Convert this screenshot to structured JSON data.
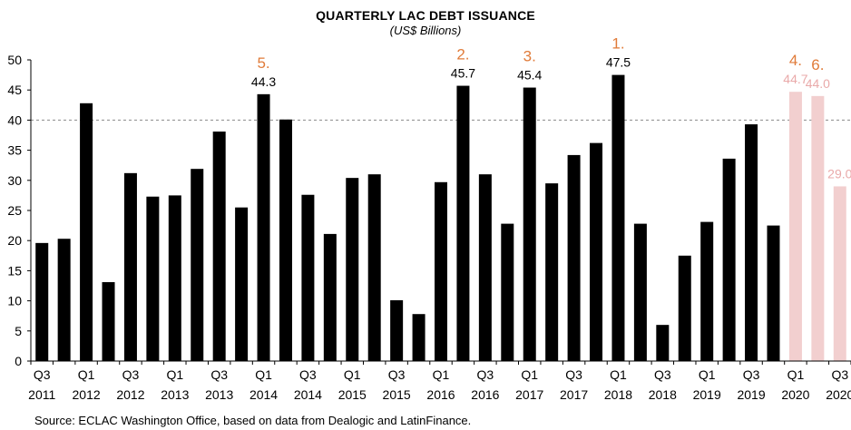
{
  "chart_data": {
    "type": "bar",
    "title": "QUARTERLY LAC DEBT ISSUANCE",
    "subtitle": "(US$ Billions)",
    "source": "Source: ECLAC Washington Office, based on data from Dealogic and LatinFinance.",
    "ylim": [
      0,
      50
    ],
    "yticks": [
      0,
      5,
      10,
      15,
      20,
      25,
      30,
      35,
      40,
      45,
      50
    ],
    "reference_line": 40,
    "grid": false,
    "categories": [
      "Q3 2011",
      "Q4 2011",
      "Q1 2012",
      "Q2 2012",
      "Q3 2012",
      "Q4 2012",
      "Q1 2013",
      "Q2 2013",
      "Q3 2013",
      "Q4 2013",
      "Q1 2014",
      "Q2 2014",
      "Q3 2014",
      "Q4 2014",
      "Q1 2015",
      "Q2 2015",
      "Q3 2015",
      "Q4 2015",
      "Q1 2016",
      "Q2 2016",
      "Q3 2016",
      "Q4 2016",
      "Q1 2017",
      "Q2 2017",
      "Q3 2017",
      "Q4 2017",
      "Q1 2018",
      "Q2 2018",
      "Q3 2018",
      "Q4 2018",
      "Q1 2019",
      "Q2 2019",
      "Q3 2019",
      "Q4 2019",
      "Q1 2020",
      "Q2 2020",
      "Q3 2020"
    ],
    "values": [
      19.6,
      20.3,
      42.8,
      13.1,
      31.2,
      27.3,
      27.5,
      31.9,
      38.1,
      25.5,
      44.3,
      40.1,
      27.6,
      21.1,
      30.4,
      31.0,
      10.1,
      7.8,
      29.7,
      45.7,
      31.0,
      22.8,
      45.4,
      29.5,
      34.2,
      36.2,
      47.5,
      22.8,
      6.0,
      17.5,
      23.1,
      33.6,
      39.3,
      22.5,
      44.7,
      44.0,
      29.0
    ],
    "highlight_indices": [
      34,
      35,
      36
    ],
    "bar_color": "#000000",
    "highlight_color": "#f2cfcf",
    "value_labels": [
      {
        "index": 10,
        "text": "44.3"
      },
      {
        "index": 19,
        "text": "45.7"
      },
      {
        "index": 22,
        "text": "45.4"
      },
      {
        "index": 26,
        "text": "47.5"
      },
      {
        "index": 34,
        "text": "44.7"
      },
      {
        "index": 35,
        "text": "44.0"
      },
      {
        "index": 36,
        "text": "29.0"
      }
    ],
    "rank_labels": [
      {
        "index": 10,
        "text": "5."
      },
      {
        "index": 19,
        "text": "2."
      },
      {
        "index": 22,
        "text": "3."
      },
      {
        "index": 26,
        "text": "1."
      },
      {
        "index": 34,
        "text": "4."
      },
      {
        "index": 35,
        "text": "6."
      }
    ],
    "rank_color": "#e07b39",
    "xtick_labels": [
      {
        "index": 0,
        "q": "Q3",
        "y": "2011"
      },
      {
        "index": 2,
        "q": "Q1",
        "y": "2012"
      },
      {
        "index": 4,
        "q": "Q3",
        "y": "2012"
      },
      {
        "index": 6,
        "q": "Q1",
        "y": "2013"
      },
      {
        "index": 8,
        "q": "Q3",
        "y": "2013"
      },
      {
        "index": 10,
        "q": "Q1",
        "y": "2014"
      },
      {
        "index": 12,
        "q": "Q3",
        "y": "2014"
      },
      {
        "index": 14,
        "q": "Q1",
        "y": "2015"
      },
      {
        "index": 16,
        "q": "Q3",
        "y": "2015"
      },
      {
        "index": 18,
        "q": "Q1",
        "y": "2016"
      },
      {
        "index": 20,
        "q": "Q3",
        "y": "2016"
      },
      {
        "index": 22,
        "q": "Q1",
        "y": "2017"
      },
      {
        "index": 24,
        "q": "Q3",
        "y": "2017"
      },
      {
        "index": 26,
        "q": "Q1",
        "y": "2018"
      },
      {
        "index": 28,
        "q": "Q3",
        "y": "2018"
      },
      {
        "index": 30,
        "q": "Q1",
        "y": "2019"
      },
      {
        "index": 32,
        "q": "Q3",
        "y": "2019"
      },
      {
        "index": 34,
        "q": "Q1",
        "y": "2020"
      },
      {
        "index": 36,
        "q": "Q3",
        "y": "2020"
      }
    ]
  }
}
